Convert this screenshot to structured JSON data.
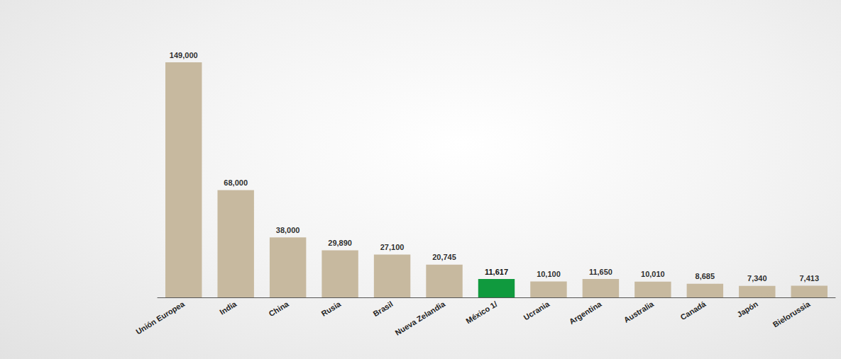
{
  "chart_data": {
    "type": "bar",
    "categories": [
      "Unión Europea",
      "India",
      "China",
      "Rusia",
      "Brasil",
      "Nueva Zelandia",
      "México 1/",
      "Ucrania",
      "Argentina",
      "Australia",
      "Canadá",
      "Japón",
      "Bielorussia"
    ],
    "values": [
      149000,
      68000,
      38000,
      29890,
      27100,
      20745,
      11617,
      10100,
      11650,
      10010,
      8685,
      7340,
      7413
    ],
    "value_labels": [
      "149,000",
      "68,000",
      "38,000",
      "29,890",
      "27,100",
      "20,745",
      "11,617",
      "10,100",
      "11,650",
      "10,010",
      "8,685",
      "7,340",
      "7,413"
    ],
    "colors": [
      "#c2b396",
      "#c2b396",
      "#c2b396",
      "#c2b396",
      "#c2b396",
      "#c2b396",
      "#109a3e",
      "#c2b396",
      "#c2b396",
      "#c2b396",
      "#c2b396",
      "#c2b396",
      "#c2b396"
    ],
    "ylim": [
      0,
      149000
    ],
    "data_labels": true,
    "grid": false,
    "tick_labels": "x"
  }
}
